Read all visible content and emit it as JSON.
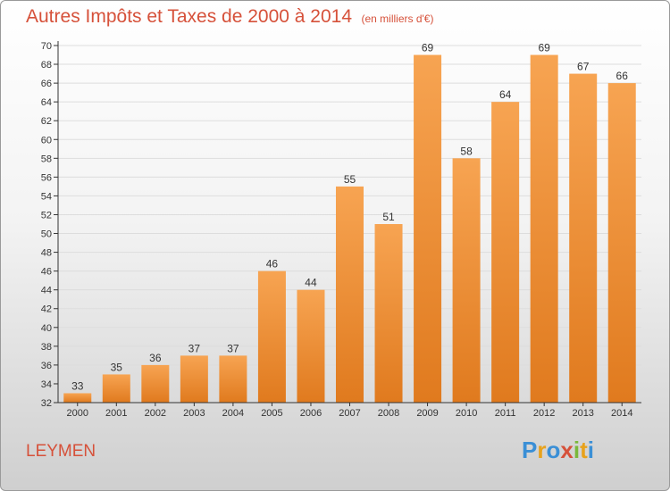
{
  "header": {
    "title": "Autres Impôts et Taxes de 2000 à 2014",
    "subtitle": "(en milliers d'€)"
  },
  "footer": {
    "commune": "LEYMEN",
    "logo_text": "Proxiti",
    "logo_colors": [
      "#3a8fd6",
      "#e8a21c",
      "#3a8fd6",
      "#d6513a",
      "#7ab83a",
      "#e8a21c",
      "#3a8fd6"
    ]
  },
  "colors": {
    "bar_top": "#f7a452",
    "bar_bottom": "#e07a1e",
    "axis": "#333333",
    "grid": "#dddddd"
  },
  "chart_data": {
    "type": "bar",
    "categories": [
      "2000",
      "2001",
      "2002",
      "2003",
      "2004",
      "2005",
      "2006",
      "2007",
      "2008",
      "2009",
      "2010",
      "2011",
      "2012",
      "2013",
      "2014"
    ],
    "values": [
      33,
      35,
      36,
      37,
      37,
      46,
      44,
      55,
      51,
      69,
      58,
      64,
      69,
      67,
      66
    ],
    "ylim": [
      32,
      70
    ],
    "ytick_step": 2,
    "title": "Autres Impôts et Taxes de 2000 à 2014",
    "xlabel": "",
    "ylabel": ""
  }
}
